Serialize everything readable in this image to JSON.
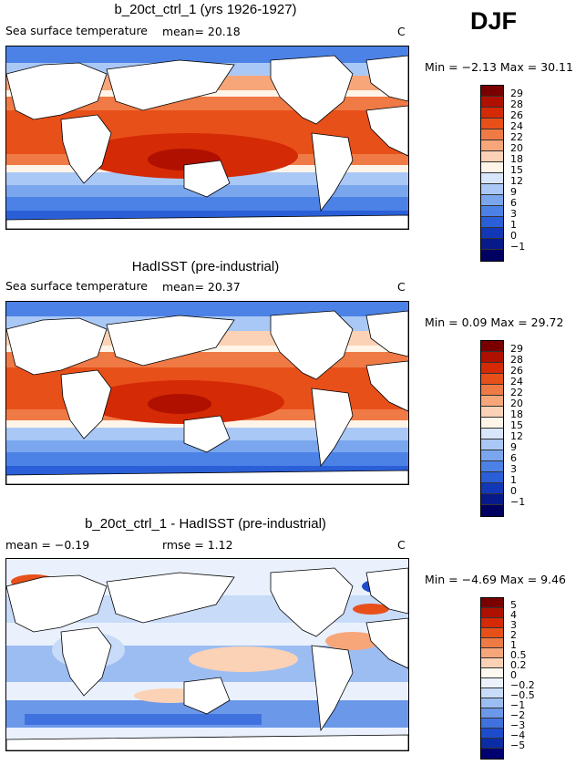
{
  "season": "DJF",
  "panels": [
    {
      "title": "b_20ct_ctrl_1 (yrs 1926-1927)",
      "left_label": "Sea surface temperature",
      "stat": "mean=  20.18",
      "unit": "C",
      "minmax": "Min =  −2.13 Max =  30.11",
      "colorbar": [
        "29",
        "28",
        "26",
        "24",
        "22",
        "20",
        "18",
        "15",
        "12",
        "9",
        "6",
        "3",
        "1",
        "0",
        "−1"
      ]
    },
    {
      "title": "HadISST (pre-industrial)",
      "left_label": "Sea surface temperature",
      "stat": "mean=  20.37",
      "unit": "C",
      "minmax": "Min =   0.09 Max =  29.72",
      "colorbar": [
        "29",
        "28",
        "26",
        "24",
        "22",
        "20",
        "18",
        "15",
        "12",
        "9",
        "6",
        "3",
        "1",
        "0",
        "−1"
      ]
    },
    {
      "title": "b_20ct_ctrl_1 - HadISST (pre-industrial)",
      "left_label": "mean =  −0.19",
      "stat": "rmse =   1.12",
      "unit": "C",
      "minmax": "Min =  −4.69 Max =   9.46",
      "colorbar": [
        "5",
        "4",
        "3",
        "2",
        "1",
        "0.5",
        "0.2",
        "0",
        "−0.2",
        "−0.5",
        "−1",
        "−2",
        "−3",
        "−4",
        "−5"
      ]
    }
  ],
  "colors": {
    "abs_scale": [
      "#7a0000",
      "#b01000",
      "#d42a05",
      "#e8501a",
      "#f07a45",
      "#f7a67a",
      "#fbd2b5",
      "#fff4e8",
      "#d8e6fb",
      "#aac8f5",
      "#7aa6ee",
      "#4c82e6",
      "#2a5fd8",
      "#1238b8",
      "#071a8a",
      "#000060"
    ],
    "diff_scale": [
      "#7a0000",
      "#b01000",
      "#d42a05",
      "#e8501a",
      "#f07a45",
      "#f7a67a",
      "#fbd2b5",
      "#fff8f0",
      "#eaf1fd",
      "#c8dbf8",
      "#9cbdf2",
      "#6c98ea",
      "#3f72df",
      "#1c4ccb",
      "#0a2ca5",
      "#000070"
    ]
  }
}
